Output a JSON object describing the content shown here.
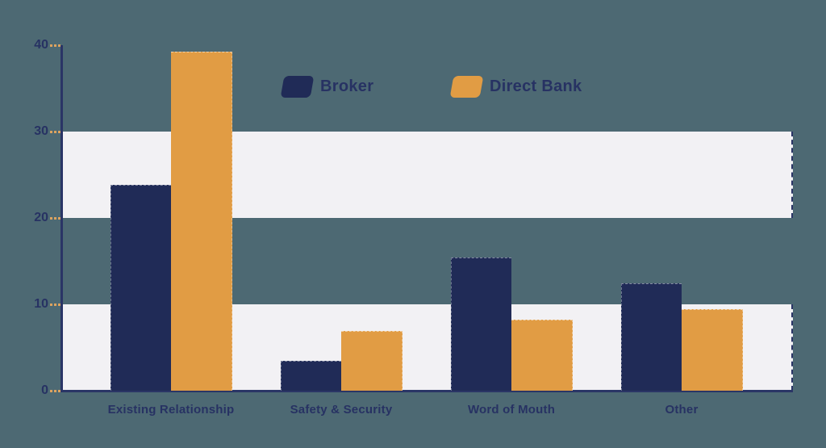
{
  "chart_data": {
    "type": "bar",
    "categories": [
      "Existing Relationship",
      "Safety & Security",
      "Word of Mouth",
      "Other"
    ],
    "series": [
      {
        "name": "Broker",
        "color": "#202b57",
        "values": [
          23.8,
          3.5,
          15.4,
          12.4
        ]
      },
      {
        "name": "Direct Bank",
        "color": "#e19c44",
        "values": [
          39.3,
          6.9,
          8.2,
          9.4
        ]
      }
    ],
    "title": "",
    "xlabel": "",
    "ylabel": "",
    "ylim": [
      0,
      40
    ],
    "yticks": [
      0,
      10,
      20,
      30,
      40
    ],
    "grid_bands": [
      [
        0,
        10
      ],
      [
        20,
        30
      ]
    ],
    "grid_band_color": "#f2f1f4",
    "background_color": "#4d6973",
    "axis_color": "#2a3566",
    "tick_mark_color": "#dca35f",
    "label_color": "#273263",
    "legend_position": "top-center"
  },
  "legend": {
    "items": [
      {
        "label": "Broker",
        "color": "#202b57"
      },
      {
        "label": "Direct Bank",
        "color": "#e19c44"
      }
    ]
  }
}
